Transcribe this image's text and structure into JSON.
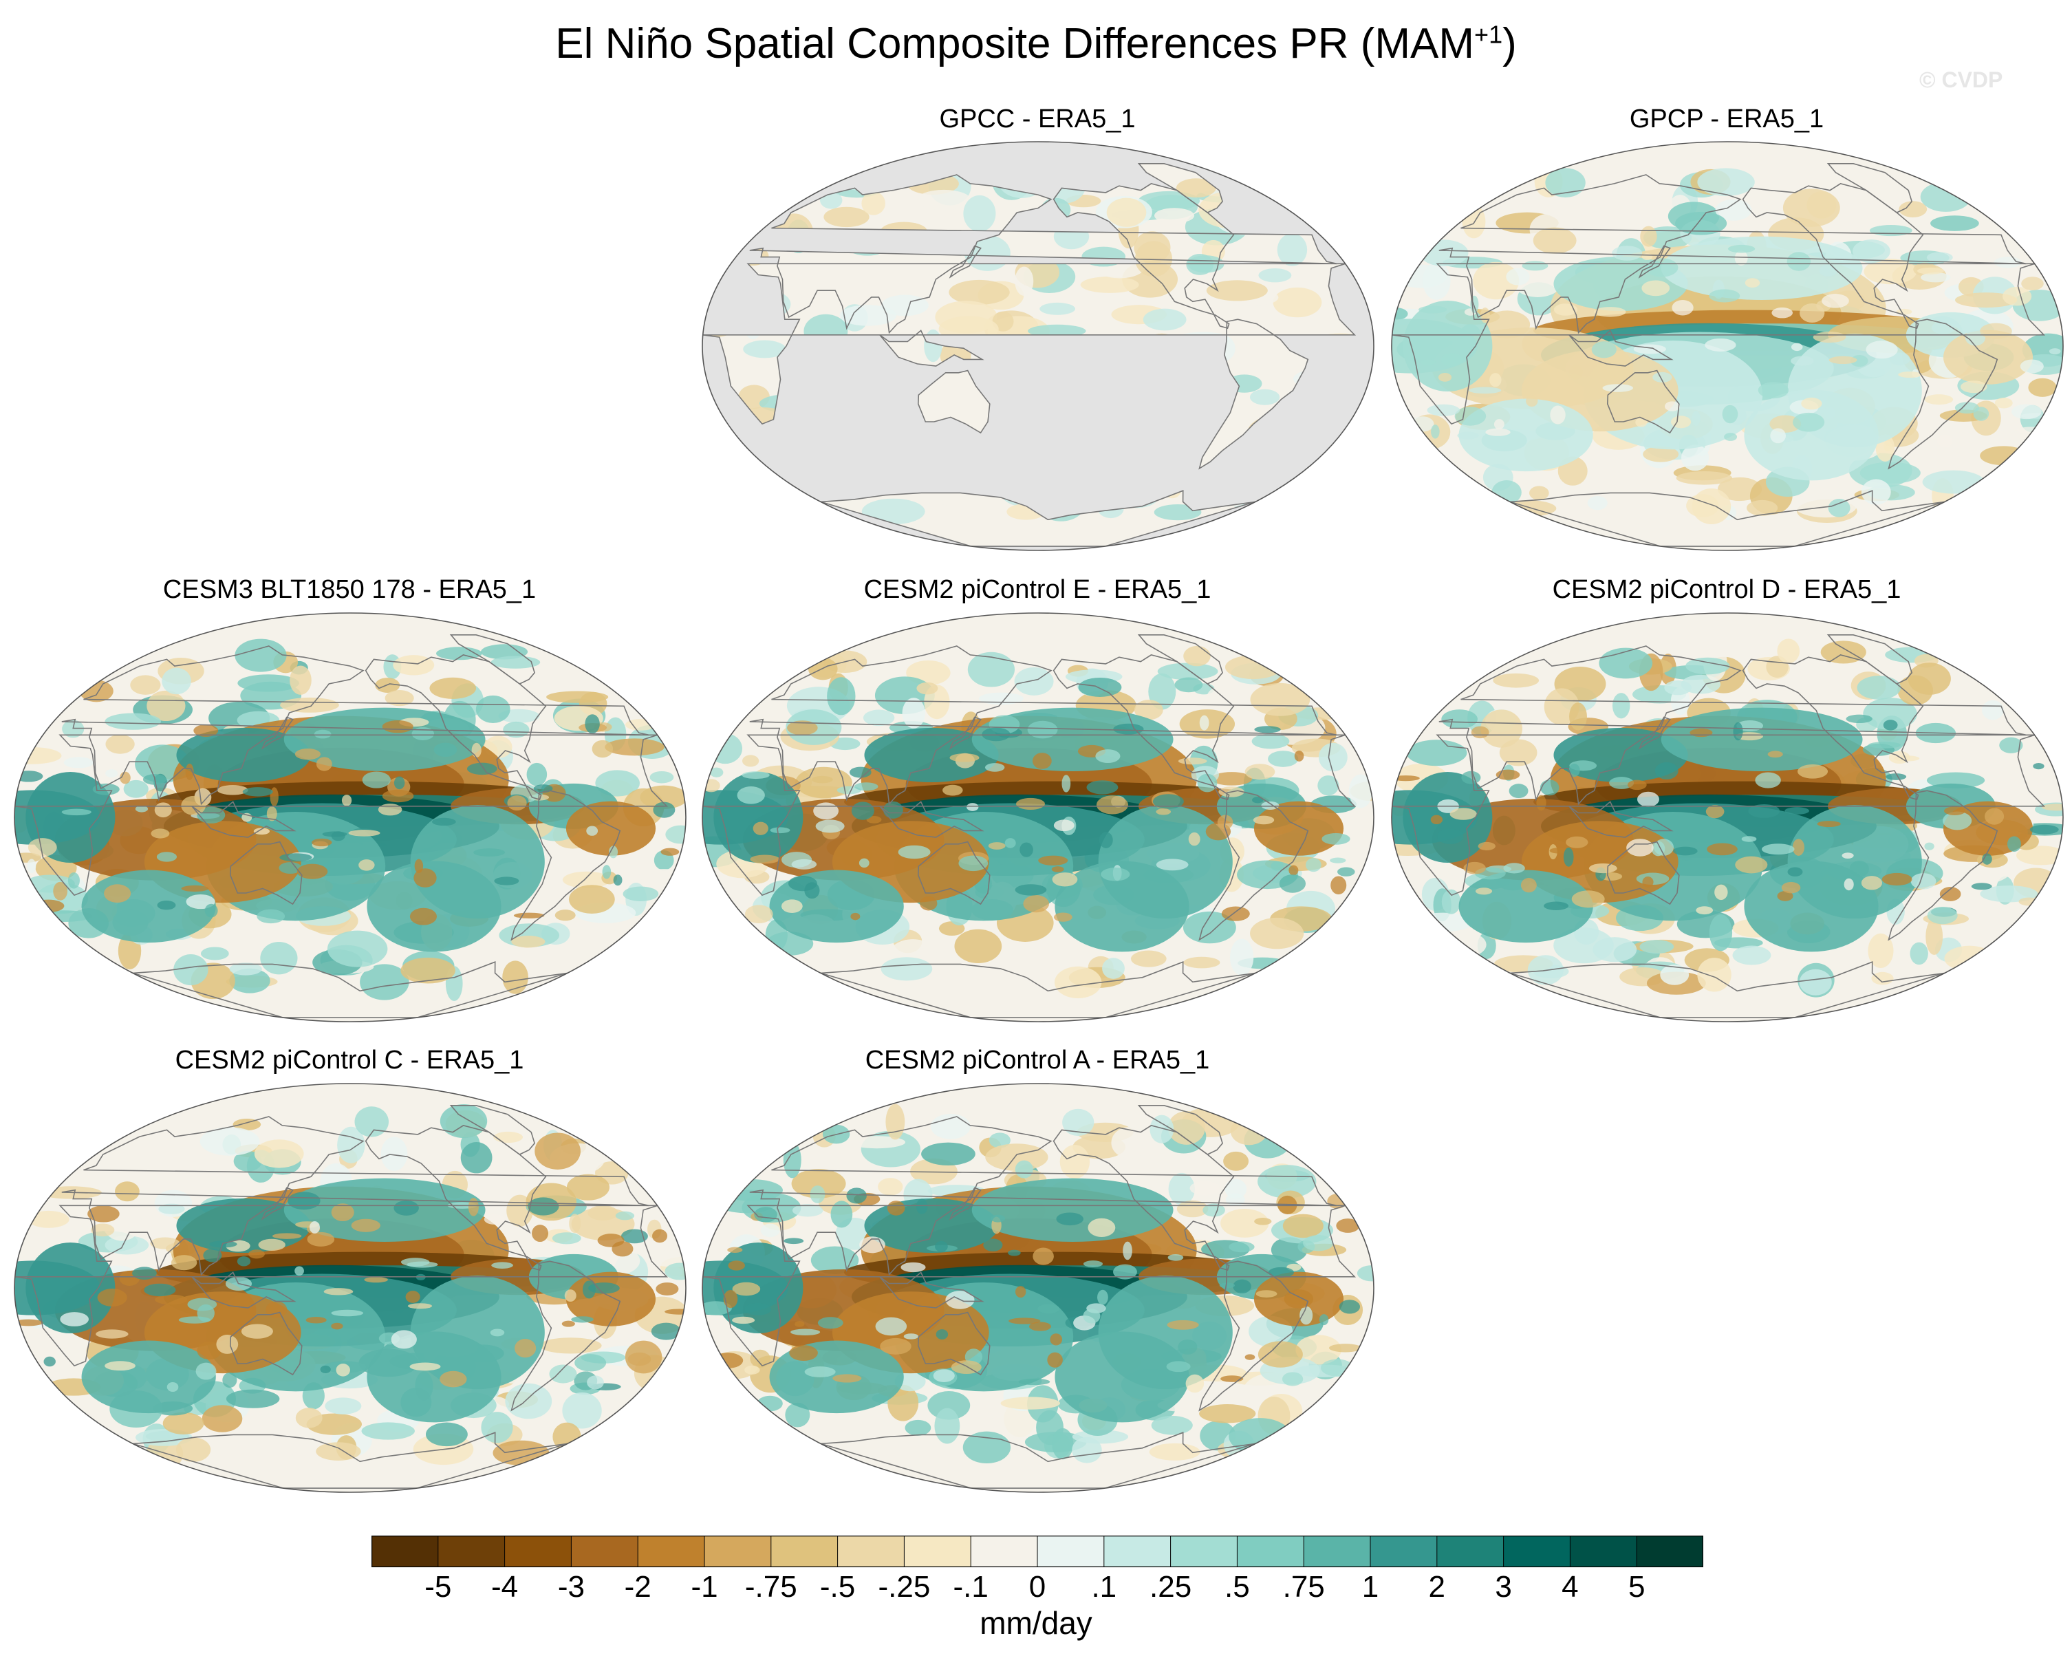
{
  "title": {
    "main": "El Niño Spatial Composite Differences PR (MAM",
    "superscript": "+1",
    "suffix": ")"
  },
  "watermark": "© CVDP",
  "units": "mm/day",
  "colors": {
    "land_mask": "#e3e3e3",
    "coast": "#777777"
  },
  "colorbar": {
    "colors": [
      "#543005",
      "#6e4008",
      "#8c510a",
      "#a86820",
      "#bf812d",
      "#d5a85d",
      "#dfc27d",
      "#ecd8a8",
      "#f6e8c3",
      "#f5f2ea",
      "#eaf4f2",
      "#c7eae5",
      "#a3ddd3",
      "#80cdc1",
      "#5ab4a8",
      "#35978f",
      "#1e8378",
      "#01665e",
      "#005248",
      "#003c30"
    ],
    "labels": [
      "-5",
      "-4",
      "-3",
      "-2",
      "-1",
      "-.75",
      "-.5",
      "-.25",
      "-.1",
      "0",
      ".1",
      ".25",
      ".5",
      ".75",
      "1",
      "2",
      "3",
      "4",
      "5"
    ]
  },
  "panels": [
    {
      "title": "GPCC - ERA5_1",
      "land_only": true,
      "amp": 0.6
    },
    {
      "title": "GPCP - ERA5_1",
      "land_only": false,
      "amp": 0.7
    },
    {
      "title": "CESM3 BLT1850 178 - ERA5_1",
      "land_only": false,
      "amp": 1.0
    },
    {
      "title": "CESM2 piControl E - ERA5_1",
      "land_only": false,
      "amp": 1.0
    },
    {
      "title": "CESM2 piControl D - ERA5_1",
      "land_only": false,
      "amp": 1.0
    },
    {
      "title": "CESM2 piControl C - ERA5_1",
      "land_only": false,
      "amp": 1.0
    },
    {
      "title": "CESM2 piControl A - ERA5_1",
      "land_only": false,
      "amp": 1.0
    }
  ]
}
